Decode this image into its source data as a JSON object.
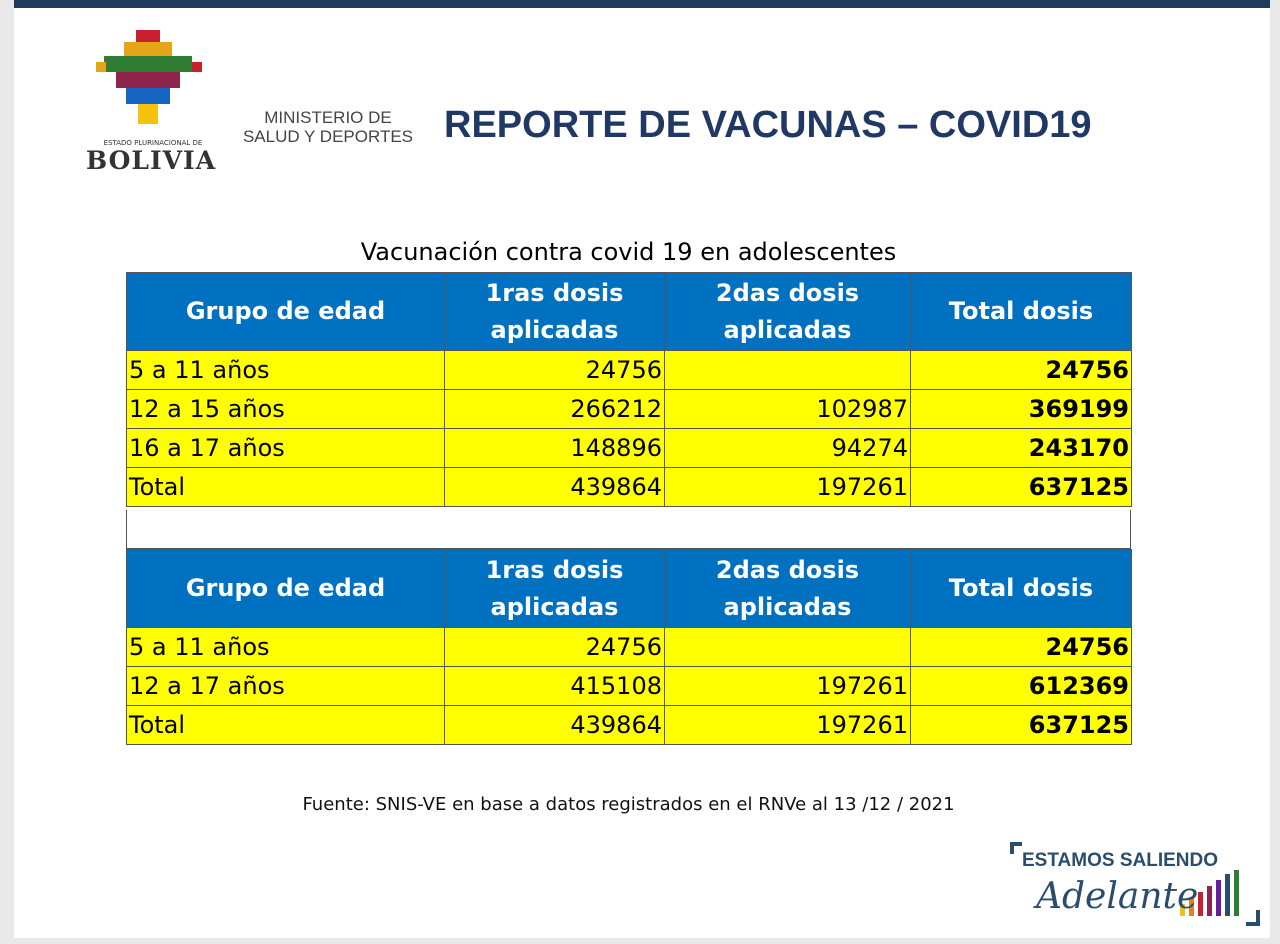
{
  "header": {
    "country_small": "ESTADO PLURINACIONAL DE",
    "country": "BOLIVIA",
    "ministry": [
      "MINISTERIO DE",
      "SALUD Y DEPORTES"
    ],
    "title": "REPORTE DE VACUNAS – COVID19"
  },
  "subtitle": "Vacunación contra covid 19 en adolescentes",
  "tables": [
    {
      "columns": [
        "Grupo de edad",
        "1ras dosis aplicadas",
        "2das dosis aplicadas",
        "Total dosis"
      ],
      "rows": [
        [
          "5 a 11 años",
          24756,
          null,
          24756
        ],
        [
          "12 a 15 años",
          266212,
          102987,
          369199
        ],
        [
          "16 a 17 años",
          148896,
          94274,
          243170
        ],
        [
          "Total",
          439864,
          197261,
          637125
        ]
      ]
    },
    {
      "columns": [
        "Grupo de edad",
        "1ras dosis aplicadas",
        "2das dosis aplicadas",
        "Total dosis"
      ],
      "rows": [
        [
          "5 a 11 años",
          24756,
          null,
          24756
        ],
        [
          "12 a 17 años",
          415108,
          197261,
          612369
        ],
        [
          "Total",
          439864,
          197261,
          637125
        ]
      ]
    }
  ],
  "footer": {
    "source": "Fuente: SNIS-VE en base a datos registrados en el RNVe al 13 /12 / 2021",
    "slogan": "ESTAMOS SALIENDO",
    "slogan_script": "Adelante"
  }
}
